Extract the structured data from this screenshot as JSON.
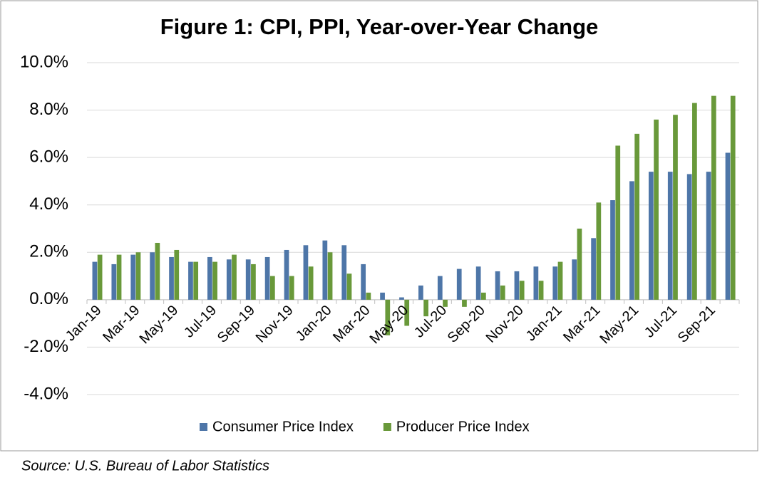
{
  "chart_data": {
    "type": "bar",
    "title": "Figure 1: CPI, PPI, Year-over-Year Change",
    "source": "Source: U.S. Bureau of Labor Statistics",
    "categories": [
      "Jan-19",
      null,
      "Mar-19",
      null,
      "May-19",
      null,
      "Jul-19",
      null,
      "Sep-19",
      null,
      "Nov-19",
      null,
      "Jan-20",
      null,
      "Mar-20",
      null,
      "May-20",
      null,
      "Jul-20",
      null,
      "Sep-20",
      null,
      "Nov-20",
      null,
      "Jan-21",
      null,
      "Mar-21",
      null,
      "May-21",
      null,
      "Jul-21",
      null,
      "Sep-21",
      null
    ],
    "series": [
      {
        "name": "Consumer Price Index",
        "color": "#4e76a8",
        "values": [
          1.6,
          1.5,
          1.9,
          2.0,
          1.8,
          1.6,
          1.8,
          1.7,
          1.7,
          1.8,
          2.1,
          2.3,
          2.5,
          2.3,
          1.5,
          0.3,
          0.1,
          0.6,
          1.0,
          1.3,
          1.4,
          1.2,
          1.2,
          1.4,
          1.4,
          1.7,
          2.6,
          4.2,
          5.0,
          5.4,
          5.4,
          5.3,
          5.4,
          6.2
        ]
      },
      {
        "name": "Producer Price Index",
        "color": "#69993a",
        "values": [
          1.9,
          1.9,
          2.0,
          2.4,
          2.1,
          1.6,
          1.6,
          1.9,
          1.5,
          1.0,
          1.0,
          1.4,
          2.0,
          1.1,
          0.3,
          -1.5,
          -1.1,
          -0.7,
          -0.3,
          -0.3,
          0.3,
          0.6,
          0.8,
          0.8,
          1.6,
          3.0,
          4.1,
          6.5,
          7.0,
          7.6,
          7.8,
          8.3,
          8.6,
          8.6
        ]
      }
    ],
    "ylim": [
      -4,
      10
    ],
    "yticks": [
      {
        "value": -4,
        "label": "-4.0%"
      },
      {
        "value": -2,
        "label": "-2.0%"
      },
      {
        "value": 0,
        "label": "0.0%"
      },
      {
        "value": 2,
        "label": "2.0%"
      },
      {
        "value": 4,
        "label": "4.0%"
      },
      {
        "value": 6,
        "label": "6.0%"
      },
      {
        "value": 8,
        "label": "8.0%"
      },
      {
        "value": 10,
        "label": "10.0%"
      }
    ],
    "grid": true,
    "legend": "bottom"
  }
}
